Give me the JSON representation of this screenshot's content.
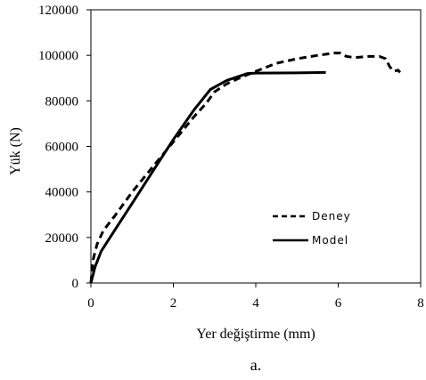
{
  "chart_data": {
    "type": "line",
    "xlabel": "Yer değiştirme  (mm)",
    "ylabel": "Yük (N)",
    "caption": "a.",
    "xlim": [
      0,
      8
    ],
    "ylim": [
      0,
      120000
    ],
    "x_ticks": [
      "0",
      "2",
      "4",
      "6",
      "8"
    ],
    "y_ticks": [
      "0",
      "20000",
      "40000",
      "60000",
      "80000",
      "100000",
      "120000"
    ],
    "grid": false,
    "legend_position": "lower-right",
    "series": [
      {
        "name": "Deney",
        "style": "dashed",
        "color": "#000000",
        "points": [
          [
            0,
            0
          ],
          [
            0.05,
            10000
          ],
          [
            0.15,
            17000
          ],
          [
            0.3,
            23000
          ],
          [
            0.6,
            30000
          ],
          [
            1.0,
            40000
          ],
          [
            1.5,
            51000
          ],
          [
            2.0,
            62000
          ],
          [
            2.5,
            73000
          ],
          [
            2.8,
            79000
          ],
          [
            3.0,
            84000
          ],
          [
            3.3,
            87500
          ],
          [
            3.6,
            90000
          ],
          [
            4.0,
            93000
          ],
          [
            4.5,
            96500
          ],
          [
            5.0,
            98500
          ],
          [
            5.5,
            100000
          ],
          [
            5.9,
            101000
          ],
          [
            6.05,
            101000
          ],
          [
            6.2,
            99500
          ],
          [
            6.4,
            99000
          ],
          [
            6.7,
            99500
          ],
          [
            7.0,
            99500
          ],
          [
            7.15,
            98500
          ],
          [
            7.25,
            95000
          ],
          [
            7.35,
            93000
          ],
          [
            7.45,
            93500
          ],
          [
            7.5,
            92500
          ]
        ]
      },
      {
        "name": "Model",
        "style": "solid",
        "color": "#000000",
        "points": [
          [
            0,
            0
          ],
          [
            0.1,
            7000
          ],
          [
            0.25,
            14000
          ],
          [
            0.5,
            21000
          ],
          [
            1.0,
            35000
          ],
          [
            1.5,
            49000
          ],
          [
            2.0,
            63000
          ],
          [
            2.5,
            76000
          ],
          [
            2.9,
            85000
          ],
          [
            3.3,
            89000
          ],
          [
            3.8,
            92000
          ],
          [
            4.0,
            92200
          ],
          [
            5.0,
            92300
          ],
          [
            5.7,
            92500
          ]
        ]
      }
    ]
  }
}
